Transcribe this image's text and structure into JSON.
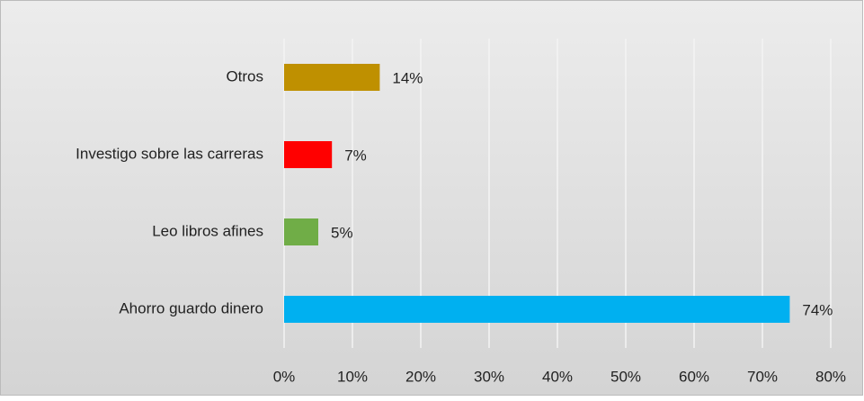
{
  "chart_data": {
    "type": "barh",
    "categories": [
      "Otros",
      "Investigo sobre las carreras",
      "Leo libros afines",
      "Ahorro guardo dinero"
    ],
    "values": [
      14,
      7,
      5,
      74
    ],
    "value_labels": [
      "14%",
      "7%",
      "5%",
      "74%"
    ],
    "colors": [
      "#bf9000",
      "#ff0000",
      "#70ad47",
      "#00b0f0"
    ],
    "xlim": [
      0,
      80
    ],
    "xticks": [
      {
        "value": 0,
        "label": "0%"
      },
      {
        "value": 10,
        "label": "10%"
      },
      {
        "value": 20,
        "label": "20%"
      },
      {
        "value": 30,
        "label": "30%"
      },
      {
        "value": 40,
        "label": "40%"
      },
      {
        "value": 50,
        "label": "50%"
      },
      {
        "value": 60,
        "label": "60%"
      },
      {
        "value": 70,
        "label": "70%"
      },
      {
        "value": 80,
        "label": "80%"
      }
    ],
    "grid": true
  }
}
